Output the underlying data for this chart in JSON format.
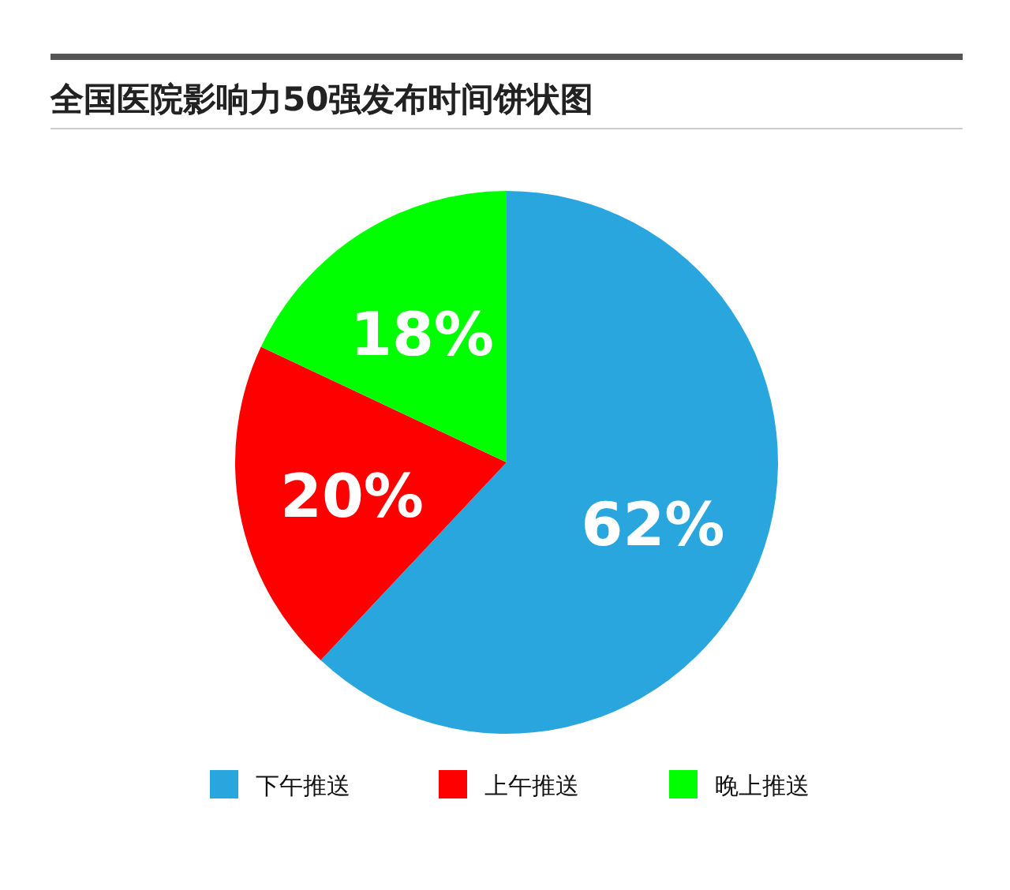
{
  "chart_data": {
    "type": "pie",
    "title": "全国医院影响力50强发布时间饼状图",
    "categories": [
      "下午推送",
      "上午推送",
      "晚上推送"
    ],
    "values": [
      62,
      20,
      18
    ],
    "colors": [
      "#29a6de",
      "#ff0000",
      "#00ff00"
    ],
    "value_labels": [
      "62%",
      "20%",
      "18%"
    ],
    "legend": "bottom"
  }
}
